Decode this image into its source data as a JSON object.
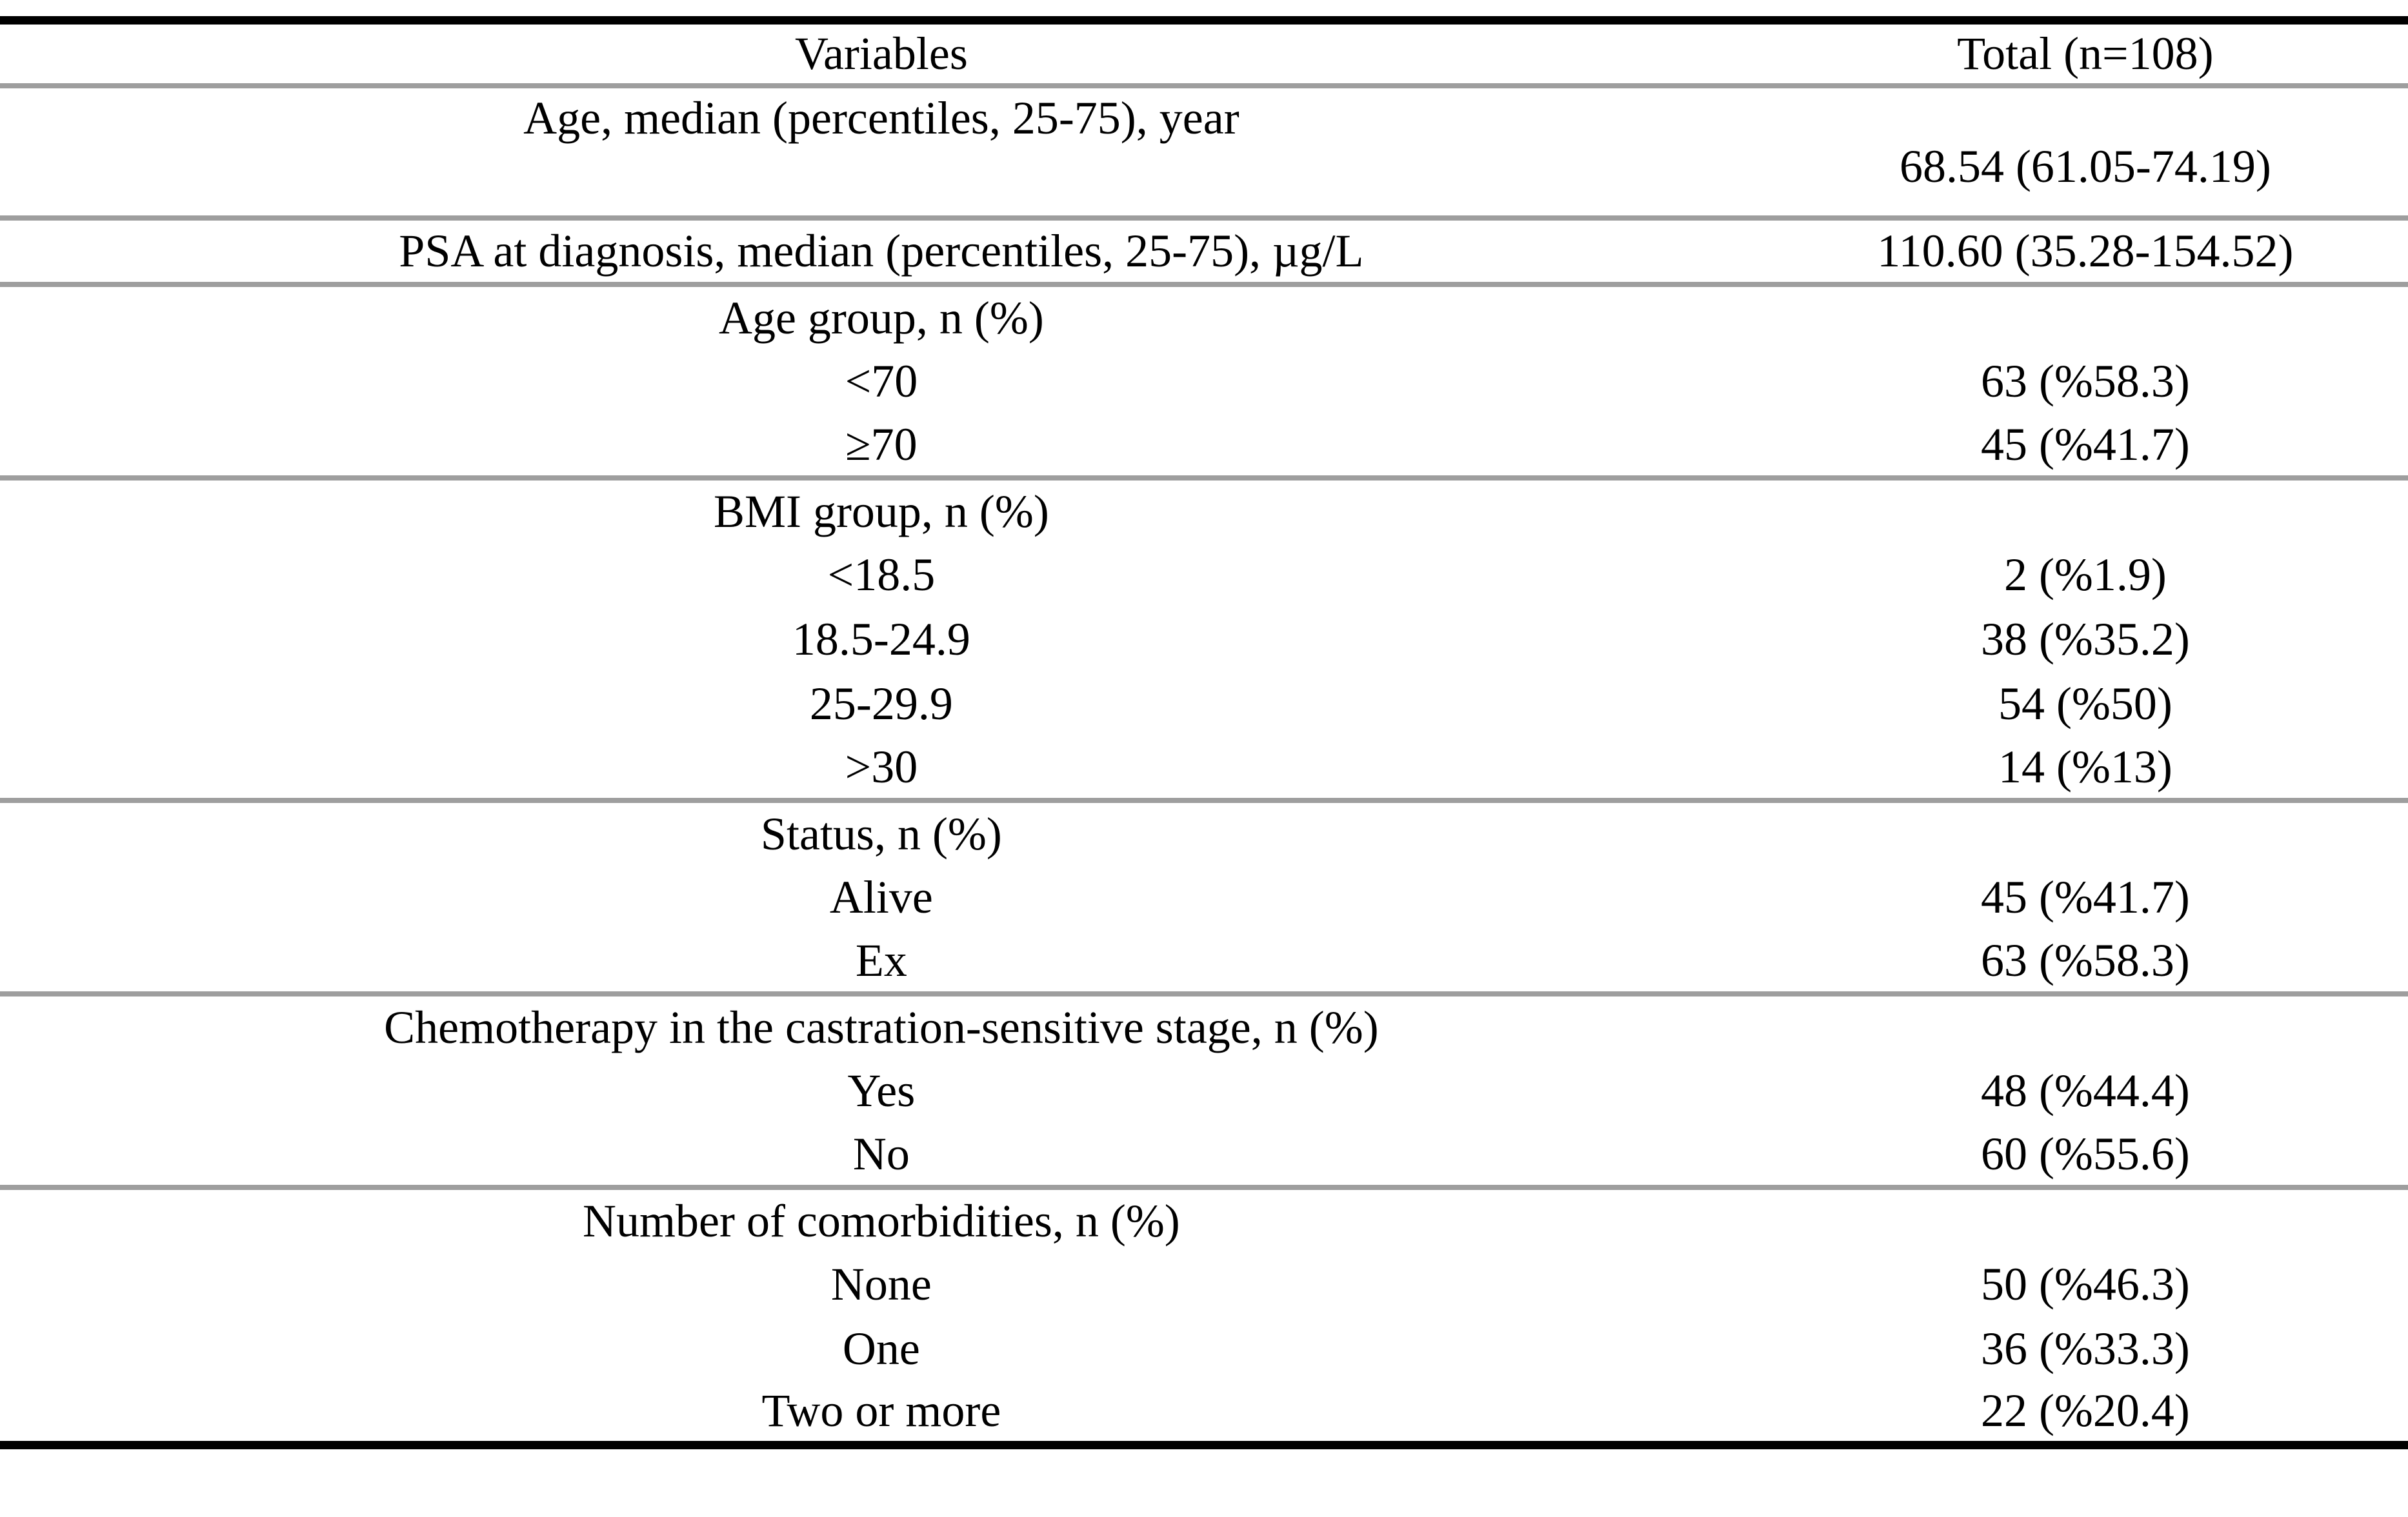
{
  "table": {
    "columns": {
      "variables": "Variables",
      "total": "Total (n=108)"
    },
    "rows": [
      {
        "label": "Age, median (percentiles, 25-75), year",
        "value": "68.54 (61.05-74.19)"
      },
      {
        "label": "PSA at diagnosis, median (percentiles, 25-75), µg/L",
        "value": "110.60 (35.28-154.52)"
      },
      {
        "label": "Age group, n (%)",
        "value": ""
      },
      {
        "label": "<70",
        "value": "63 (%58.3)"
      },
      {
        "label": "≥70",
        "value": "45 (%41.7)"
      },
      {
        "label": "BMI group, n (%)",
        "value": ""
      },
      {
        "label": "<18.5",
        "value": "2 (%1.9)"
      },
      {
        "label": "18.5-24.9",
        "value": "38 (%35.2)"
      },
      {
        "label": "25-29.9",
        "value": "54 (%50)"
      },
      {
        "label": ">30",
        "value": "14 (%13)"
      },
      {
        "label": "Status, n (%)",
        "value": ""
      },
      {
        "label": "Alive",
        "value": "45 (%41.7)"
      },
      {
        "label": "Ex",
        "value": "63 (%58.3)"
      },
      {
        "label": "Chemotherapy in the castration-sensitive stage, n (%)",
        "value": ""
      },
      {
        "label": "Yes",
        "value": "48 (%44.4)"
      },
      {
        "label": "No",
        "value": "60 (%55.6)"
      },
      {
        "label": "Number of comorbidities, n (%)",
        "value": ""
      },
      {
        "label": "None",
        "value": "50 (%46.3)"
      },
      {
        "label": "One",
        "value": "36 (%33.3)"
      },
      {
        "label": "Two or more",
        "value": "22 (%20.4)"
      }
    ]
  }
}
